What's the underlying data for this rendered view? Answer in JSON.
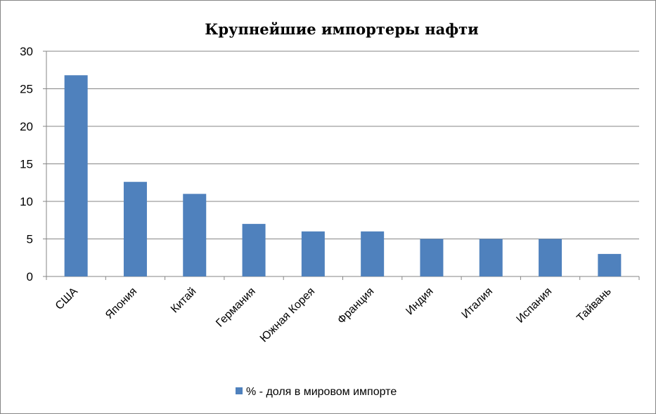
{
  "chart_data": {
    "type": "bar",
    "title": "Крупнейшие импортеры нафти",
    "xlabel": "",
    "ylabel": "",
    "categories": [
      "США",
      "Япония",
      "Китай",
      "Германия",
      "Южная Корея",
      "Франция",
      "Индия",
      "Италия",
      "Испания",
      "Тайвань"
    ],
    "series": [
      {
        "name": "% - доля в мировом импорте",
        "values": [
          26.8,
          12.6,
          11.0,
          7.0,
          6.0,
          6.0,
          5.0,
          5.0,
          5.0,
          3.0
        ]
      }
    ],
    "ylim": [
      0,
      30
    ],
    "yticks": [
      0,
      5,
      10,
      15,
      20,
      25,
      30
    ],
    "grid": true,
    "legend_position": "bottom",
    "colors": {
      "bar": "#4f81bd",
      "grid": "#868686",
      "text": "#000000"
    }
  }
}
